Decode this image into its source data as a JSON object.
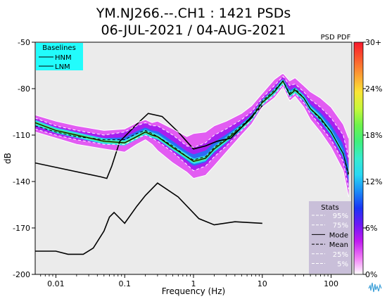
{
  "chart_data": {
    "type": "heatmap",
    "title_line1": "YM.NJ266.--.CH1 : 1421 PSDs",
    "title_line2": "06-JUL-2021 / 04-AUG-2021",
    "xlabel": "Frequency (Hz)",
    "ylabel": "dB",
    "xscale": "log",
    "xlim": [
      0.005,
      200
    ],
    "ylim": [
      -200,
      -50
    ],
    "x_ticks": [
      0.01,
      0.1,
      1,
      10,
      100
    ],
    "x_tick_labels": [
      "0.01",
      "0.1",
      "1",
      "10",
      "100"
    ],
    "y_ticks": [
      -50,
      -80,
      -110,
      -140,
      -170,
      -200
    ],
    "y_tick_labels": [
      "-50",
      "-80",
      "-110",
      "-140",
      "-170",
      "-200"
    ],
    "colorbar": {
      "title": "PSD PDF",
      "ticks": [
        0,
        6,
        12,
        18,
        24,
        30
      ],
      "tick_labels": [
        "0%",
        "6%",
        "12%",
        "18%",
        "24%",
        "30+"
      ],
      "colors": [
        "#ffffff",
        "#f17cf6",
        "#c11bf1",
        "#6d17f5",
        "#1935f5",
        "#1b8bf7",
        "#28d8f4",
        "#36eccf",
        "#3ef07d",
        "#6ef34b",
        "#c7f83a",
        "#fbe535",
        "#fca033",
        "#fb5a2e",
        "#f8172b"
      ]
    },
    "baselines": {
      "title": "Baselines",
      "legend_bg": "#22fcfc",
      "entries": [
        "HNM",
        "LNM"
      ],
      "HNM": {
        "freq": [
          0.005,
          0.045,
          0.055,
          0.065,
          0.085,
          0.1,
          0.15,
          0.22,
          0.35,
          0.6,
          1.0,
          1.5,
          2.2,
          3.5,
          5.0,
          7.0,
          10.0
        ],
        "db": [
          -128,
          -137,
          -138,
          -130,
          -114,
          -111,
          -103,
          -96,
          -98,
          -108,
          -119,
          -117,
          -114,
          -112,
          -105,
          -98,
          -91
        ]
      },
      "LNM": {
        "freq": [
          0.005,
          0.01,
          0.015,
          0.025,
          0.035,
          0.05,
          0.06,
          0.07,
          0.1,
          0.15,
          0.2,
          0.3,
          0.6,
          1.2,
          2.0,
          4.0,
          10.0
        ],
        "db": [
          -185,
          -185,
          -187,
          -187,
          -183,
          -172,
          -163,
          -160,
          -167,
          -156,
          -149,
          -141,
          -150,
          -164,
          -168,
          -166,
          -167
        ]
      }
    },
    "stats": {
      "title": "Stats",
      "legend_bg": "#c9bfd9",
      "entries": [
        "95%",
        "75%",
        "Mode",
        "Mean",
        "25%",
        "5%"
      ],
      "freq": [
        0.005,
        0.01,
        0.02,
        0.05,
        0.1,
        0.15,
        0.2,
        0.25,
        0.3,
        0.5,
        0.8,
        1.0,
        1.5,
        2.0,
        3.0,
        5.0,
        7.0,
        10.0,
        15.0,
        20.0,
        25.0,
        30.0,
        40.0,
        50.0,
        70.0,
        100.0,
        150.0,
        180.0
      ],
      "p95": [
        -97,
        -101,
        -104,
        -107,
        -106,
        -102,
        -100,
        -102,
        -101,
        -106,
        -111,
        -109,
        -108,
        -104,
        -101,
        -96,
        -91,
        -83,
        -74,
        -70,
        -75,
        -73,
        -78,
        -82,
        -86,
        -92,
        -103,
        -112
      ],
      "p75": [
        -99,
        -104,
        -107,
        -110,
        -108,
        -104,
        -102,
        -104,
        -104,
        -110,
        -117,
        -118,
        -115,
        -110,
        -106,
        -100,
        -95,
        -86,
        -78,
        -72,
        -78,
        -77,
        -82,
        -87,
        -92,
        -99,
        -110,
        -125
      ],
      "mode": [
        -102,
        -107,
        -110,
        -114,
        -115,
        -111,
        -108,
        -110,
        -111,
        -118,
        -124,
        -127,
        -125,
        -119,
        -113,
        -105,
        -99,
        -89,
        -82,
        -75,
        -84,
        -81,
        -86,
        -93,
        -99,
        -108,
        -122,
        -135
      ],
      "mean": [
        -104,
        -108,
        -111,
        -113,
        -113,
        -109,
        -107,
        -109,
        -111,
        -117,
        -124,
        -126,
        -124,
        -118,
        -112,
        -104,
        -98,
        -88,
        -81,
        -75,
        -83,
        -80,
        -86,
        -93,
        -100,
        -108,
        -122,
        -137
      ],
      "p25": [
        -106,
        -110,
        -113,
        -116,
        -116,
        -112,
        -110,
        -112,
        -114,
        -121,
        -129,
        -133,
        -130,
        -124,
        -117,
        -107,
        -100,
        -90,
        -84,
        -77,
        -86,
        -83,
        -89,
        -96,
        -104,
        -113,
        -127,
        -145
      ],
      "p5": [
        -108,
        -112,
        -116,
        -119,
        -121,
        -116,
        -113,
        -116,
        -120,
        -128,
        -134,
        -138,
        -136,
        -130,
        -121,
        -110,
        -103,
        -92,
        -86,
        -79,
        -88,
        -85,
        -92,
        -100,
        -108,
        -118,
        -133,
        -150
      ]
    }
  }
}
